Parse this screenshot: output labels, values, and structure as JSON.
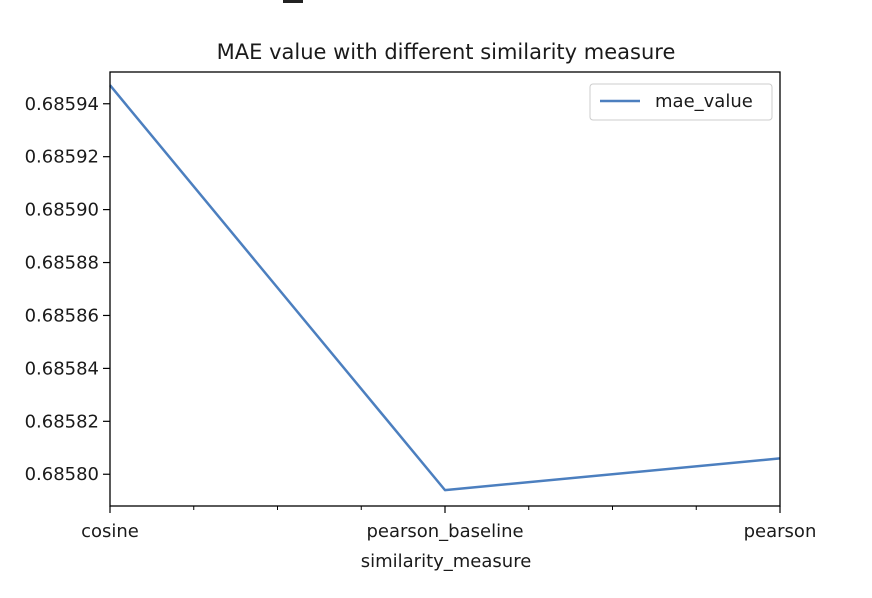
{
  "chart_data": {
    "type": "line",
    "title": "MAE value with different similarity measure",
    "xlabel": "similarity_measure",
    "ylabel": "",
    "categories": [
      "cosine",
      "pearson_baseline",
      "pearson"
    ],
    "series": [
      {
        "name": "mae_value",
        "values": [
          0.685947,
          0.685794,
          0.685806
        ],
        "color": "#4c7fbf"
      }
    ],
    "ylim": [
      0.685788,
      0.685952
    ],
    "yticks": [
      0.6858,
      0.68582,
      0.68584,
      0.68586,
      0.68588,
      0.6859,
      0.68592,
      0.68594
    ],
    "ytick_labels": [
      "0.68580",
      "0.68582",
      "0.68584",
      "0.68586",
      "0.68588",
      "0.68590",
      "0.68592",
      "0.68594"
    ],
    "grid": false,
    "legend_position": "top-right"
  }
}
